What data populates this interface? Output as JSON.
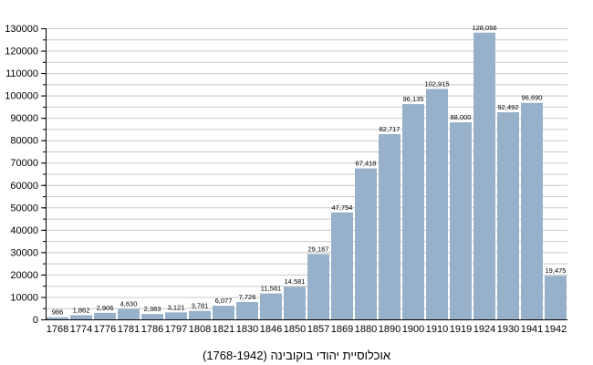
{
  "chart_data": {
    "type": "bar",
    "title": "אוכלוסיית יהודי בוקובינה (1768-1942)",
    "xlabel": "",
    "ylabel": "",
    "ylim": [
      0,
      130000
    ],
    "yticks": [
      0,
      10000,
      20000,
      30000,
      40000,
      50000,
      60000,
      70000,
      80000,
      90000,
      100000,
      110000,
      120000,
      130000
    ],
    "grid": true,
    "bar_color": "#98b1cb",
    "categories": [
      "1768",
      "1774",
      "1776",
      "1781",
      "1786",
      "1797",
      "1808",
      "1821",
      "1830",
      "1846",
      "1850",
      "1857",
      "1869",
      "1880",
      "1890",
      "1900",
      "1910",
      "1919",
      "1924",
      "1930",
      "1941",
      "1942"
    ],
    "values": [
      986,
      1862,
      2906,
      4630,
      2383,
      3121,
      3781,
      6077,
      7726,
      11581,
      14581,
      29187,
      47754,
      67418,
      82717,
      96135,
      102915,
      88000,
      128056,
      92492,
      96690,
      19475
    ],
    "data_labels": [
      "986",
      "1,862",
      "2,906",
      "4,630",
      "2,383",
      "3,121",
      "3,781",
      "6,077",
      "7,726",
      "11,581",
      "14,581",
      "29,187",
      "47,754",
      "67,418",
      "82,717",
      "96,135",
      "102,915",
      "88,000",
      "128,056",
      "92,492",
      "96,690",
      "19,475"
    ]
  }
}
